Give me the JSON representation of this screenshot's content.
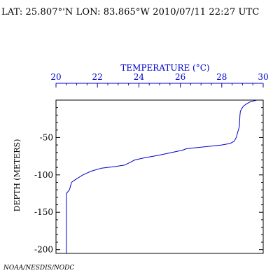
{
  "header": {
    "text": "LAT: 25.807°'N LON: 83.865°W 2010/07/11 22:27 UTC"
  },
  "footer": {
    "credit": "NOAA/NESDIS/NODC"
  },
  "colors": {
    "profile": "#0000cc",
    "top_axis": "#0000cc",
    "frame": "#000000"
  },
  "chart_data": {
    "type": "line",
    "title": "",
    "xlabel": "TEMPERATURE (°C)",
    "ylabel": "DEPTH (METERS)",
    "x_axis_position": "top",
    "xlim": [
      20,
      30
    ],
    "ylim": [
      -205,
      0
    ],
    "x_ticks": [
      20,
      22,
      24,
      26,
      28,
      30
    ],
    "x_tick_labels": [
      "20",
      "22",
      "24",
      "26",
      "28",
      "30"
    ],
    "y_ticks": [
      -50,
      -100,
      -150,
      -200
    ],
    "y_tick_labels": [
      "-50",
      "-100",
      "-150",
      "-200"
    ],
    "grid": false,
    "legend": "none",
    "series": [
      {
        "x": [
          29.7,
          29.4,
          29.2,
          29.05,
          28.95,
          28.9,
          28.88,
          28.85,
          28.75,
          28.7,
          28.6,
          28.4,
          28.0,
          27.0,
          26.3,
          26.1,
          25.6,
          24.9,
          24.3,
          23.8,
          23.6,
          23.45,
          23.3,
          22.8,
          22.2,
          21.7,
          21.3,
          20.9,
          20.75,
          20.7,
          20.65,
          20.5,
          20.5
        ],
        "y": [
          0,
          -2,
          -5,
          -8,
          -12,
          -15,
          -20,
          -35,
          -45,
          -50,
          -55,
          -58,
          -60,
          -63,
          -65,
          -67,
          -70,
          -74,
          -77,
          -80,
          -83,
          -85,
          -87,
          -89,
          -91,
          -95,
          -100,
          -107,
          -110,
          -115,
          -120,
          -125,
          -205
        ]
      }
    ]
  }
}
